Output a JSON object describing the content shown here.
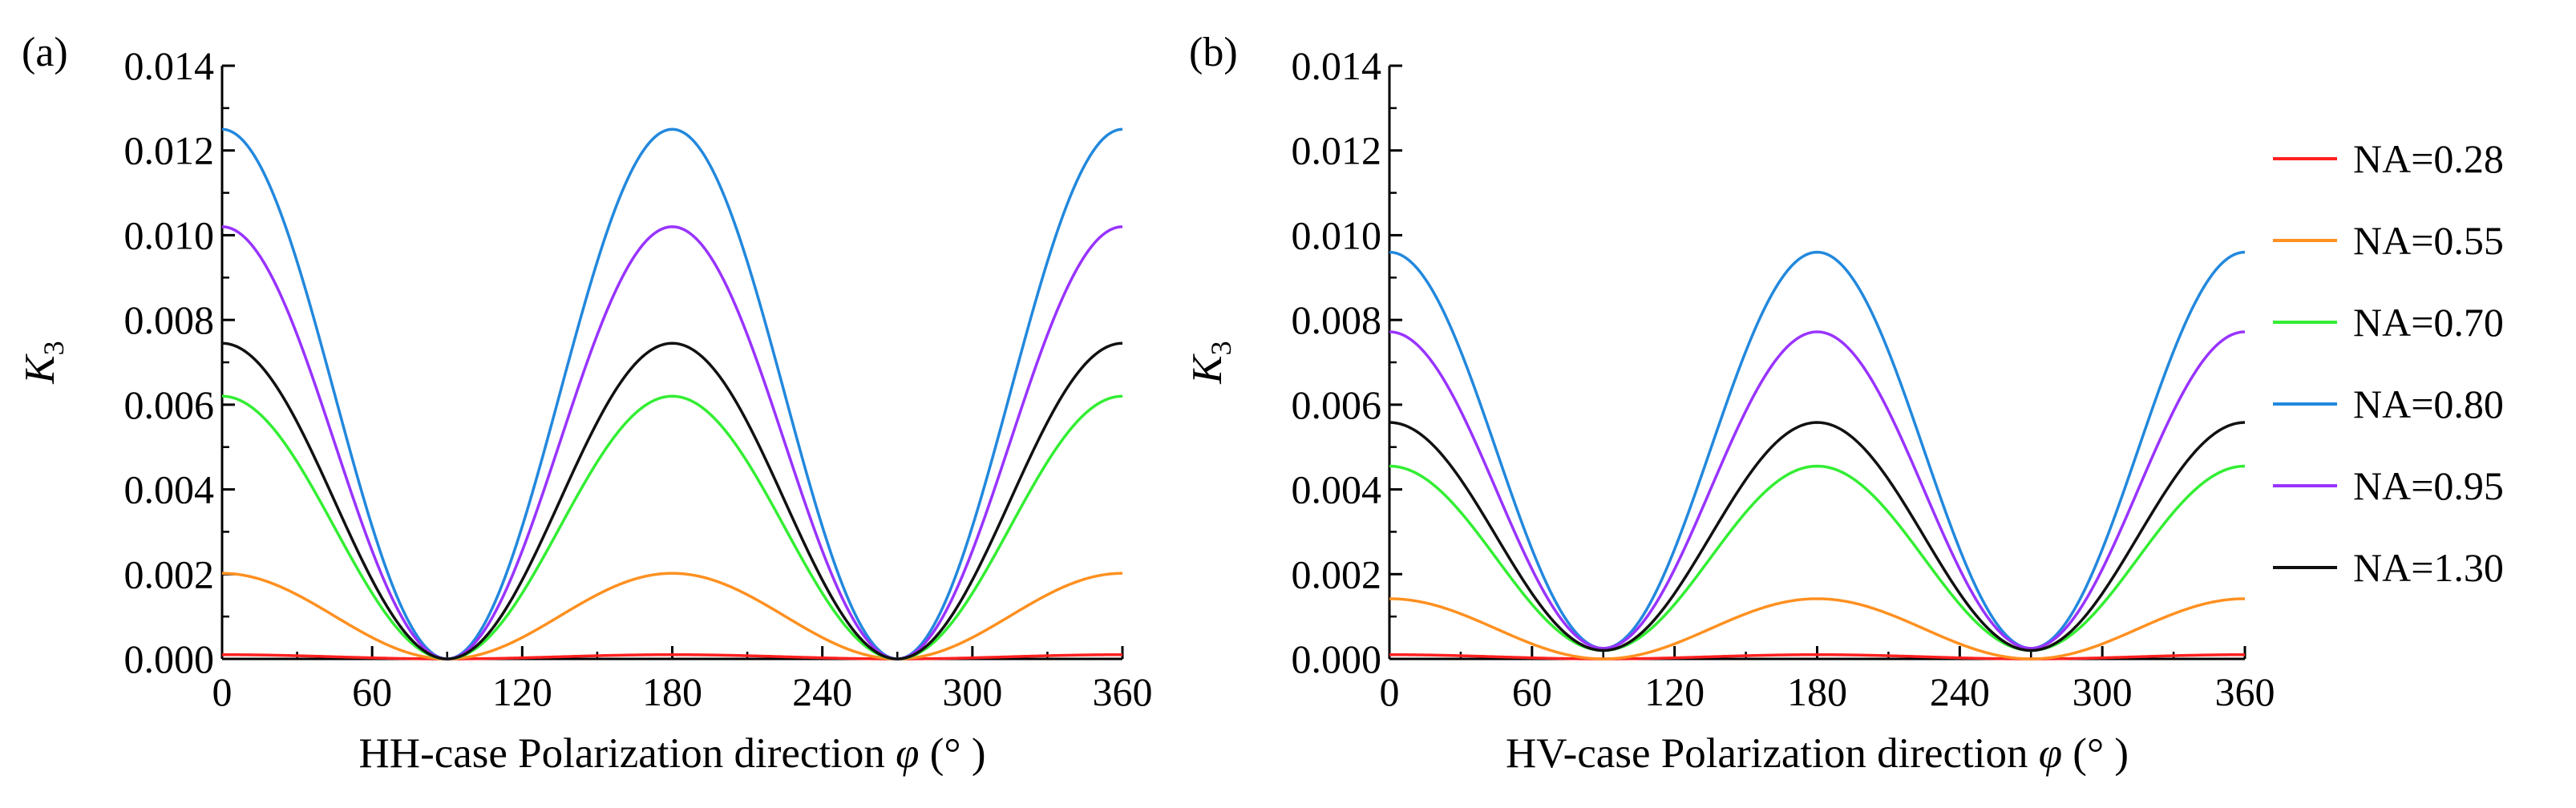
{
  "chart_data": [
    {
      "type": "line",
      "panel_label": "(a)",
      "xlabel_prefix": "HH-case Polarization direction",
      "xlabel_symbol": "φ",
      "xlabel_unit": "(° )",
      "ylabel_main": "K",
      "ylabel_sub": "3",
      "xlim": [
        0,
        360
      ],
      "ylim": [
        0,
        0.014
      ],
      "x_ticks": [
        "0",
        "60",
        "120",
        "180",
        "240",
        "300",
        "360"
      ],
      "y_ticks": [
        "0.000",
        "0.002",
        "0.004",
        "0.006",
        "0.008",
        "0.010",
        "0.012",
        "0.014"
      ],
      "grid": false,
      "series": [
        {
          "name": "NA=0.28",
          "color": "#ff2020",
          "max": 0.0001,
          "min": 0.0
        },
        {
          "name": "NA=0.55",
          "color": "#ff9020",
          "max": 0.00202,
          "min": 0.0
        },
        {
          "name": "NA=0.70",
          "color": "#33ee33",
          "max": 0.0062,
          "min": 0.0
        },
        {
          "name": "NA=0.80",
          "color": "#2288dd",
          "max": 0.0125,
          "min": 0.0
        },
        {
          "name": "NA=0.95",
          "color": "#9933ff",
          "max": 0.0102,
          "min": 0.0
        },
        {
          "name": "NA=1.30",
          "color": "#111111",
          "max": 0.00745,
          "min": 0.0
        }
      ]
    },
    {
      "type": "line",
      "panel_label": "(b)",
      "xlabel_prefix": "HV-case Polarization direction",
      "xlabel_symbol": "φ",
      "xlabel_unit": "(° )",
      "ylabel_main": "K",
      "ylabel_sub": "3",
      "xlim": [
        0,
        360
      ],
      "ylim": [
        0,
        0.014
      ],
      "x_ticks": [
        "0",
        "60",
        "120",
        "180",
        "240",
        "300",
        "360"
      ],
      "y_ticks": [
        "0.000",
        "0.002",
        "0.004",
        "0.006",
        "0.008",
        "0.010",
        "0.012",
        "0.014"
      ],
      "grid": false,
      "legend_position": "right",
      "series": [
        {
          "name": "NA=0.28",
          "color": "#ff2020",
          "max": 0.0001,
          "min": 0.0
        },
        {
          "name": "NA=0.55",
          "color": "#ff9020",
          "max": 0.00142,
          "min": 0.0
        },
        {
          "name": "NA=0.70",
          "color": "#33ee33",
          "max": 0.00455,
          "min": 0.0002
        },
        {
          "name": "NA=0.80",
          "color": "#2288dd",
          "max": 0.0096,
          "min": 0.00025
        },
        {
          "name": "NA=0.95",
          "color": "#9933ff",
          "max": 0.00772,
          "min": 0.00025
        },
        {
          "name": "NA=1.30",
          "color": "#111111",
          "max": 0.00558,
          "min": 0.0002
        }
      ]
    }
  ],
  "legend": {
    "items": [
      {
        "label": "NA=0.28",
        "color": "#ff2020"
      },
      {
        "label": "NA=0.55",
        "color": "#ff9020"
      },
      {
        "label": "NA=0.70",
        "color": "#33ee33"
      },
      {
        "label": "NA=0.80",
        "color": "#2288dd"
      },
      {
        "label": "NA=0.95",
        "color": "#9933ff"
      },
      {
        "label": "NA=1.30",
        "color": "#111111"
      }
    ]
  }
}
